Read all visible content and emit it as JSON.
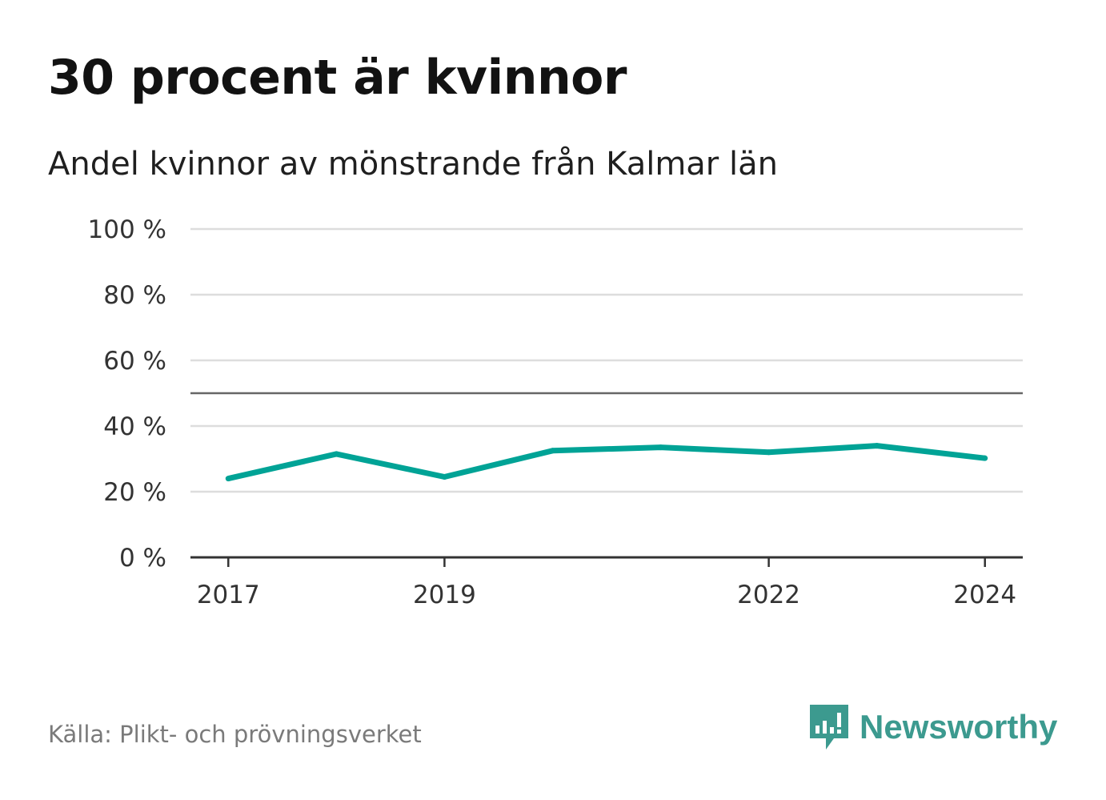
{
  "title": "30 procent är kvinnor",
  "subtitle": "Andel kvinnor av mönstrande från Kalmar län",
  "source": "Källa: Plikt- och prövningsverket",
  "logo": {
    "text": "Newsworthy",
    "icon": "newsworthy-chart-icon",
    "color": "#3c9a8f"
  },
  "colors": {
    "line": "#00a396",
    "grid": "#dddddd",
    "reference": "#666666",
    "axis": "#333333"
  },
  "chart_data": {
    "type": "line",
    "title": "30 procent är kvinnor",
    "subtitle": "Andel kvinnor av mönstrande från Kalmar län",
    "xlabel": "",
    "ylabel": "",
    "x": [
      2017,
      2018,
      2019,
      2020,
      2021,
      2022,
      2023,
      2024
    ],
    "series": [
      {
        "name": "Andel kvinnor",
        "values": [
          24,
          31.5,
          24.5,
          32.5,
          33.5,
          32,
          34,
          30.2
        ]
      }
    ],
    "ylim": [
      0,
      100
    ],
    "xlim": [
      2016.65,
      2024.35
    ],
    "y_ticks": [
      0,
      20,
      40,
      60,
      80,
      100
    ],
    "y_tick_labels": [
      "0 %",
      "20 %",
      "40 %",
      "60 %",
      "80 %",
      "100 %"
    ],
    "x_ticks": [
      2017,
      2019,
      2022,
      2024
    ],
    "x_tick_labels": [
      "2017",
      "2019",
      "2022",
      "2024"
    ],
    "reference_line": 50,
    "grid": true,
    "legend": "none"
  }
}
